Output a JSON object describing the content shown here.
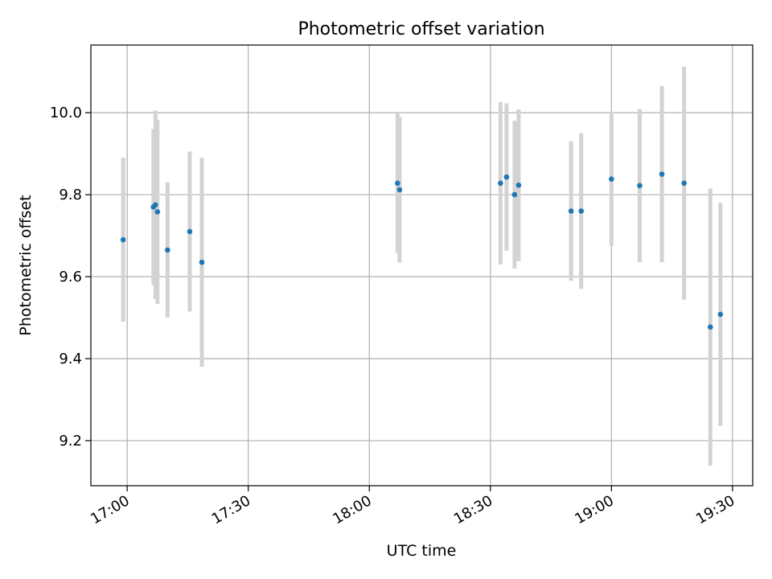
{
  "chart_data": {
    "type": "scatter",
    "title": "Photometric offset variation",
    "xlabel": "UTC time",
    "ylabel": "Photometric offset",
    "x_ticks": [
      "17:00",
      "17:30",
      "18:00",
      "18:30",
      "19:00",
      "19:30"
    ],
    "y_ticks": [
      "9.2",
      "9.4",
      "9.6",
      "9.8",
      "10.0"
    ],
    "xlim": [
      "16:51",
      "19:35"
    ],
    "ylim": [
      9.09,
      10.165
    ],
    "grid": true,
    "series": [
      {
        "colors": {
          "point": "#1f77b4",
          "errorbar": "#d3d3d3"
        },
        "points": [
          {
            "t": "16:59",
            "y": 9.69,
            "err": 0.2
          },
          {
            "t": "17:06.5",
            "y": 9.77,
            "err": 0.19
          },
          {
            "t": "17:07",
            "y": 9.775,
            "err": 0.23
          },
          {
            "t": "17:07.5",
            "y": 9.758,
            "err": 0.225
          },
          {
            "t": "17:10",
            "y": 9.665,
            "err": 0.165
          },
          {
            "t": "17:15.5",
            "y": 9.71,
            "err": 0.195
          },
          {
            "t": "17:18.5",
            "y": 9.635,
            "err": 0.255
          },
          {
            "t": "18:07",
            "y": 9.828,
            "err": 0.17
          },
          {
            "t": "18:07.5",
            "y": 9.812,
            "err": 0.178
          },
          {
            "t": "18:32.5",
            "y": 9.828,
            "err": 0.198
          },
          {
            "t": "18:34",
            "y": 9.843,
            "err": 0.18
          },
          {
            "t": "18:36",
            "y": 9.8,
            "err": 0.18
          },
          {
            "t": "18:37",
            "y": 9.823,
            "err": 0.185
          },
          {
            "t": "18:50",
            "y": 9.76,
            "err": 0.17
          },
          {
            "t": "18:52.5",
            "y": 9.76,
            "err": 0.19
          },
          {
            "t": "19:00",
            "y": 9.838,
            "err": 0.163
          },
          {
            "t": "19:07",
            "y": 9.822,
            "err": 0.187
          },
          {
            "t": "19:12.5",
            "y": 9.85,
            "err": 0.215
          },
          {
            "t": "19:18",
            "y": 9.828,
            "err": 0.284
          },
          {
            "t": "19:24.5",
            "y": 9.477,
            "err": 0.338
          },
          {
            "t": "19:27",
            "y": 9.508,
            "err": 0.272
          }
        ]
      }
    ]
  }
}
